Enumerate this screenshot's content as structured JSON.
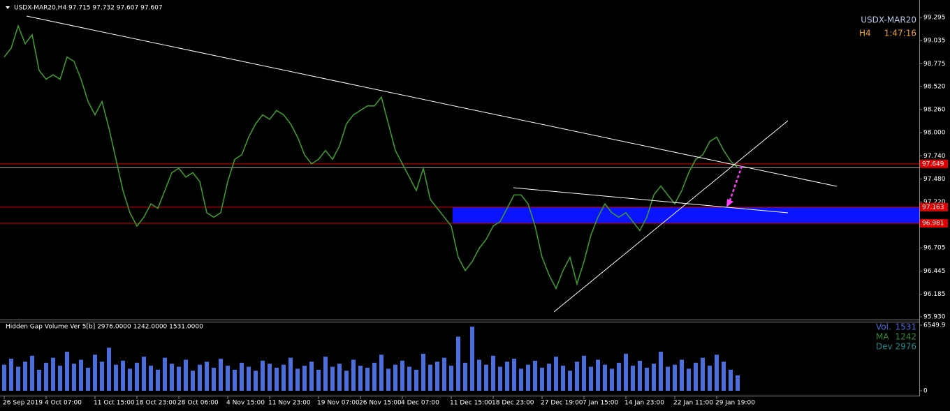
{
  "chart_data": [
    {
      "type": "line",
      "title": "USDX-MAR20,H4  97.715 97.732 97.607 97.607",
      "symbol": "USDX-MAR20",
      "timeframe": "H4",
      "timer": "1:47:16",
      "color": "#3c9a2a",
      "categories": [
        "26 Sep 2019",
        null,
        null,
        null,
        null,
        null,
        "4 Oct 07:00",
        null,
        null,
        null,
        null,
        null,
        null,
        "11 Oct 15:00",
        null,
        null,
        null,
        null,
        null,
        "18 Oct 23:00",
        null,
        null,
        null,
        null,
        null,
        "28 Oct 06:00",
        null,
        null,
        null,
        null,
        null,
        null,
        "4 Nov 15:00",
        null,
        null,
        null,
        null,
        null,
        "11 Nov 23:00",
        null,
        null,
        null,
        null,
        null,
        null,
        "19 Nov 07:00",
        null,
        null,
        null,
        null,
        null,
        "26 Nov 15:00",
        null,
        null,
        null,
        null,
        null,
        "4 Dec 07:00",
        null,
        null,
        null,
        null,
        null,
        null,
        "11 Dec 15:00",
        null,
        null,
        null,
        null,
        null,
        "18 Dec 23:00",
        null,
        null,
        null,
        null,
        null,
        null,
        "27 Dec 19:00",
        null,
        null,
        null,
        null,
        null,
        "7 Jan 15:00",
        null,
        null,
        null,
        null,
        null,
        "14 Jan 23:00",
        null,
        null,
        null,
        null,
        null,
        null,
        "22 Jan 11:00",
        null,
        null,
        null,
        null,
        null,
        "29 Jan 19:00",
        null,
        null,
        null
      ],
      "values": [
        98.85,
        98.95,
        99.2,
        99.0,
        99.1,
        98.7,
        98.6,
        98.65,
        98.6,
        98.85,
        98.8,
        98.6,
        98.35,
        98.2,
        98.35,
        98.05,
        97.7,
        97.35,
        97.1,
        96.95,
        97.05,
        97.2,
        97.15,
        97.35,
        97.55,
        97.6,
        97.5,
        97.55,
        97.45,
        97.1,
        97.05,
        97.1,
        97.45,
        97.7,
        97.75,
        97.95,
        98.1,
        98.2,
        98.15,
        98.25,
        98.2,
        98.1,
        97.95,
        97.75,
        97.65,
        97.7,
        97.8,
        97.7,
        97.85,
        98.1,
        98.2,
        98.25,
        98.3,
        98.3,
        98.4,
        98.1,
        97.8,
        97.65,
        97.5,
        97.35,
        97.6,
        97.25,
        97.15,
        97.05,
        96.95,
        96.6,
        96.45,
        96.55,
        96.7,
        96.8,
        96.95,
        97.0,
        97.15,
        97.3,
        97.3,
        97.2,
        96.95,
        96.6,
        96.4,
        96.25,
        96.45,
        96.6,
        96.3,
        96.55,
        96.85,
        97.05,
        97.2,
        97.1,
        97.05,
        97.1,
        97.0,
        96.9,
        97.05,
        97.3,
        97.4,
        97.3,
        97.2,
        97.35,
        97.55,
        97.7,
        97.75,
        97.9,
        97.95,
        97.8,
        97.68,
        97.607
      ],
      "ylim": [
        95.899,
        99.491
      ],
      "yticks": [
        99.295,
        99.035,
        98.775,
        {
          "value": 98.52,
          "label": "98.520"
        },
        {
          "value": 98.26,
          "label": "98.260"
        },
        {
          "value": 98.0,
          "label": "98.000"
        },
        {
          "value": 97.74,
          "label": "97.740"
        },
        {
          "value": 97.48,
          "label": "97.480"
        },
        {
          "value": 97.22,
          "label": "97.220"
        },
        96.705,
        96.445,
        96.185,
        {
          "value": 95.93,
          "label": "95.930"
        }
      ],
      "levels": [
        97.649,
        97.163,
        96.981
      ],
      "level_color": "#e00000",
      "zone_color": "#0a14ff"
    },
    {
      "type": "bar",
      "title": "Hidden Gap Volume Ver 5[b] 2976.0000 1242.0000 1531.0000",
      "color": "#4a6ee0",
      "values": [
        2600,
        3200,
        2400,
        2900,
        3500,
        2100,
        2800,
        3300,
        2500,
        3900,
        2700,
        3100,
        2300,
        3600,
        2900,
        4300,
        2600,
        3000,
        2200,
        2800,
        3400,
        2500,
        2100,
        3300,
        2700,
        2400,
        3100,
        2000,
        2600,
        2900,
        2300,
        3200,
        2500,
        2100,
        2800,
        2400,
        2000,
        3000,
        2700,
        2300,
        2600,
        3300,
        2200,
        2500,
        2900,
        2100,
        3400,
        2400,
        2700,
        2000,
        3100,
        2500,
        2300,
        2800,
        3600,
        2200,
        2600,
        3000,
        2400,
        2100,
        3700,
        2600,
        2900,
        3300,
        2500,
        5400,
        2800,
        6400,
        3100,
        2600,
        3500,
        2400,
        2900,
        3200,
        2200,
        2600,
        3000,
        2300,
        2700,
        3400,
        2500,
        2000,
        2900,
        3500,
        2400,
        3100,
        2600,
        2200,
        2800,
        3700,
        2500,
        3000,
        2300,
        2700,
        3900,
        2400,
        2600,
        3100,
        2200,
        2800,
        3300,
        2500,
        3600,
        2900,
        2100,
        1531
      ],
      "ylim": [
        0,
        6549.9
      ],
      "yticks": [
        0,
        6549.9
      ],
      "legend": [
        {
          "name": "Vol.",
          "value": 1531,
          "color": "#4a6ee0"
        },
        {
          "name": "MA",
          "value": 1242,
          "color": "#2e8b2e"
        },
        {
          "name": "Dev",
          "value": 2976,
          "color": "#1f8a8a"
        }
      ]
    }
  ]
}
